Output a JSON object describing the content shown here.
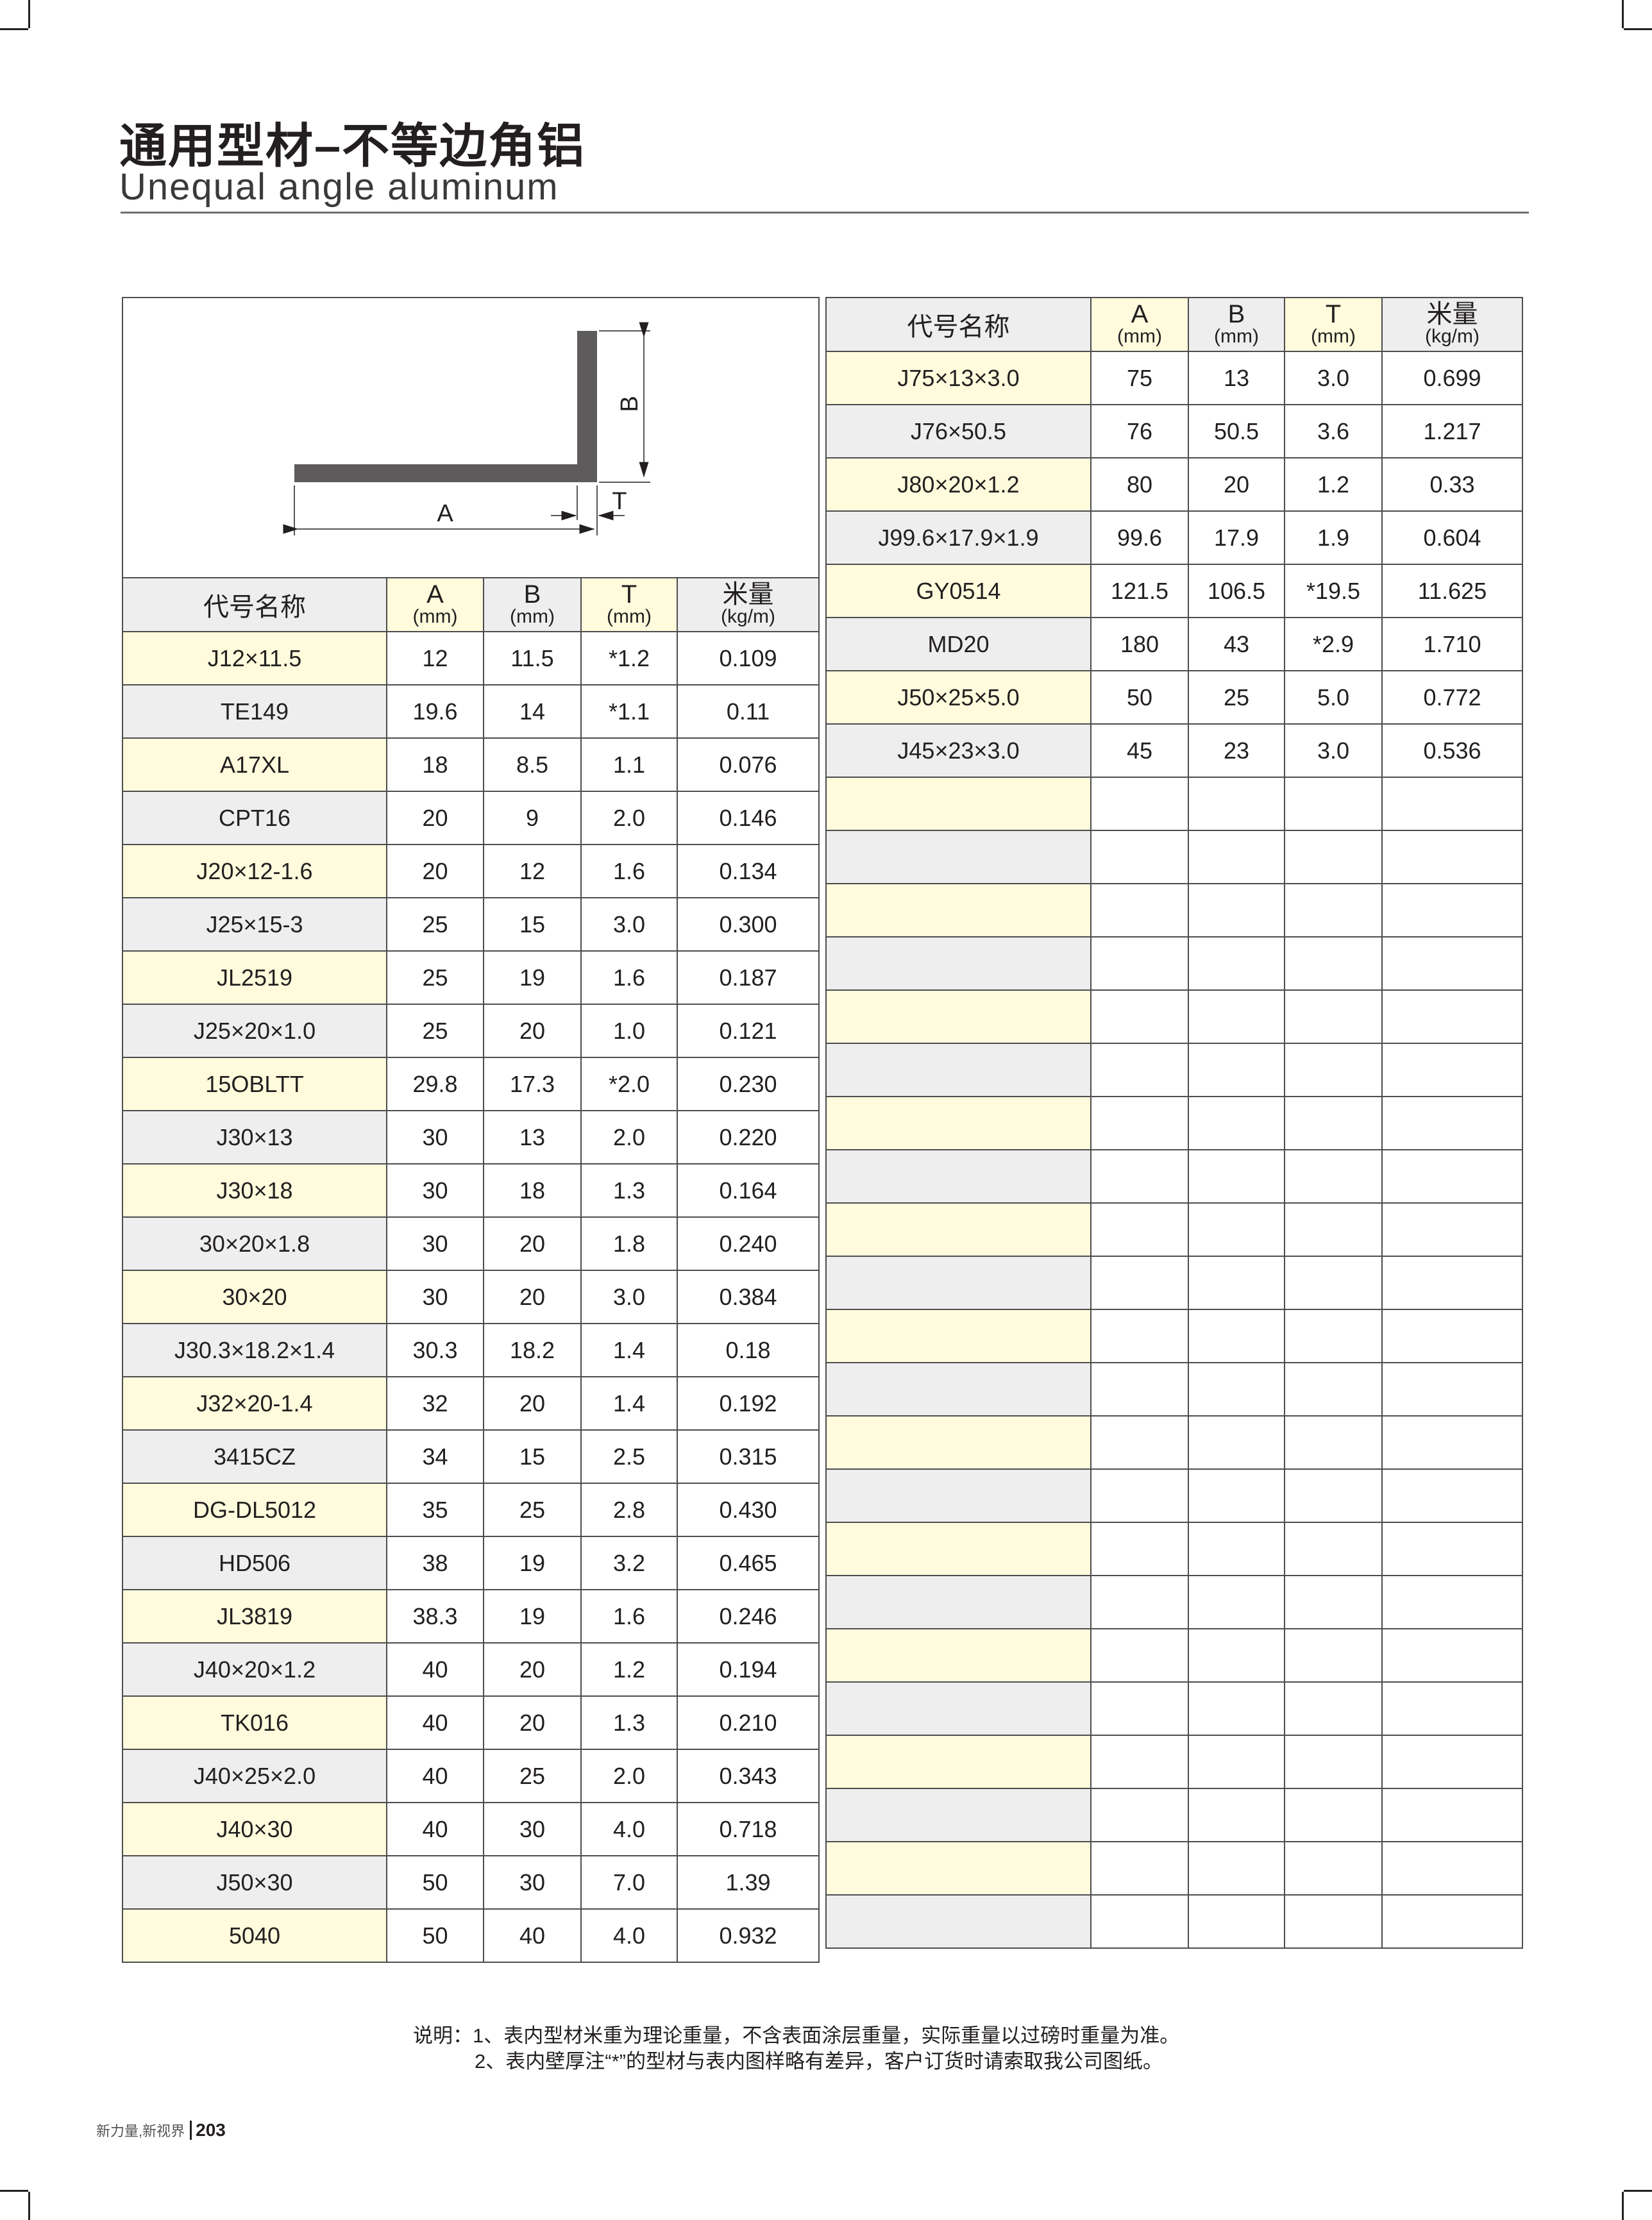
{
  "header": {
    "title": "通用型材–不等边角铝",
    "subtitle": "Unequal angle aluminum"
  },
  "diagram": {
    "label_a": "A",
    "label_b": "B",
    "label_t": "T"
  },
  "columns": {
    "name": "代号名称",
    "a": "A",
    "a_unit": "(mm)",
    "b": "B",
    "b_unit": "(mm)",
    "t": "T",
    "t_unit": "(mm)",
    "weight": "米量",
    "weight_unit": "(kg/m)"
  },
  "colors": {
    "highlight_yellow": "#fffbdc",
    "highlight_gray": "#eeeeee",
    "border": "#4d4d4f"
  },
  "left_table": [
    [
      "J12×11.5",
      "12",
      "11.5",
      "*1.2",
      "0.109"
    ],
    [
      "TE149",
      "19.6",
      "14",
      "*1.1",
      "0.11"
    ],
    [
      "A17XL",
      "18",
      "8.5",
      "1.1",
      "0.076"
    ],
    [
      "CPT16",
      "20",
      "9",
      "2.0",
      "0.146"
    ],
    [
      "J20×12-1.6",
      "20",
      "12",
      "1.6",
      "0.134"
    ],
    [
      "J25×15-3",
      "25",
      "15",
      "3.0",
      "0.300"
    ],
    [
      "JL2519",
      "25",
      "19",
      "1.6",
      "0.187"
    ],
    [
      "J25×20×1.0",
      "25",
      "20",
      "1.0",
      "0.121"
    ],
    [
      "15OBLTT",
      "29.8",
      "17.3",
      "*2.0",
      "0.230"
    ],
    [
      "J30×13",
      "30",
      "13",
      "2.0",
      "0.220"
    ],
    [
      "J30×18",
      "30",
      "18",
      "1.3",
      "0.164"
    ],
    [
      "30×20×1.8",
      "30",
      "20",
      "1.8",
      "0.240"
    ],
    [
      "30×20",
      "30",
      "20",
      "3.0",
      "0.384"
    ],
    [
      "J30.3×18.2×1.4",
      "30.3",
      "18.2",
      "1.4",
      "0.18"
    ],
    [
      "J32×20-1.4",
      "32",
      "20",
      "1.4",
      "0.192"
    ],
    [
      "3415CZ",
      "34",
      "15",
      "2.5",
      "0.315"
    ],
    [
      "DG-DL5012",
      "35",
      "25",
      "2.8",
      "0.430"
    ],
    [
      "HD506",
      "38",
      "19",
      "3.2",
      "0.465"
    ],
    [
      "JL3819",
      "38.3",
      "19",
      "1.6",
      "0.246"
    ],
    [
      "J40×20×1.2",
      "40",
      "20",
      "1.2",
      "0.194"
    ],
    [
      "TK016",
      "40",
      "20",
      "1.3",
      "0.210"
    ],
    [
      "J40×25×2.0",
      "40",
      "25",
      "2.0",
      "0.343"
    ],
    [
      "J40×30",
      "40",
      "30",
      "4.0",
      "0.718"
    ],
    [
      "J50×30",
      "50",
      "30",
      "7.0",
      "1.39"
    ],
    [
      "5040",
      "50",
      "40",
      "4.0",
      "0.932"
    ]
  ],
  "right_table": [
    [
      "J75×13×3.0",
      "75",
      "13",
      "3.0",
      "0.699"
    ],
    [
      "J76×50.5",
      "76",
      "50.5",
      "3.6",
      "1.217"
    ],
    [
      "J80×20×1.2",
      "80",
      "20",
      "1.2",
      "0.33"
    ],
    [
      "J99.6×17.9×1.9",
      "99.6",
      "17.9",
      "1.9",
      "0.604"
    ],
    [
      "GY0514",
      "121.5",
      "106.5",
      "*19.5",
      "11.625"
    ],
    [
      "MD20",
      "180",
      "43",
      "*2.9",
      "1.710"
    ],
    [
      "J50×25×5.0",
      "50",
      "25",
      "5.0",
      "0.772"
    ],
    [
      "J45×23×3.0",
      "45",
      "23",
      "3.0",
      "0.536"
    ],
    [
      "",
      "",
      "",
      "",
      ""
    ],
    [
      "",
      "",
      "",
      "",
      ""
    ],
    [
      "",
      "",
      "",
      "",
      ""
    ],
    [
      "",
      "",
      "",
      "",
      ""
    ],
    [
      "",
      "",
      "",
      "",
      ""
    ],
    [
      "",
      "",
      "",
      "",
      ""
    ],
    [
      "",
      "",
      "",
      "",
      ""
    ],
    [
      "",
      "",
      "",
      "",
      ""
    ],
    [
      "",
      "",
      "",
      "",
      ""
    ],
    [
      "",
      "",
      "",
      "",
      ""
    ],
    [
      "",
      "",
      "",
      "",
      ""
    ],
    [
      "",
      "",
      "",
      "",
      ""
    ],
    [
      "",
      "",
      "",
      "",
      ""
    ],
    [
      "",
      "",
      "",
      "",
      ""
    ],
    [
      "",
      "",
      "",
      "",
      ""
    ],
    [
      "",
      "",
      "",
      "",
      ""
    ],
    [
      "",
      "",
      "",
      "",
      ""
    ],
    [
      "",
      "",
      "",
      "",
      ""
    ],
    [
      "",
      "",
      "",
      "",
      ""
    ],
    [
      "",
      "",
      "",
      "",
      ""
    ],
    [
      "",
      "",
      "",
      "",
      ""
    ],
    [
      "",
      "",
      "",
      "",
      ""
    ]
  ],
  "notes": {
    "line1": "说明：1、表内型材米重为理论重量，不含表面涂层重量，实际重量以过磅时重量为准。",
    "line2": "2、表内壁厚注“*”的型材与表内图样略有差异，客户订货时请索取我公司图纸。"
  },
  "footer": {
    "slogan": "新力量,新视界",
    "page_number": "203"
  }
}
